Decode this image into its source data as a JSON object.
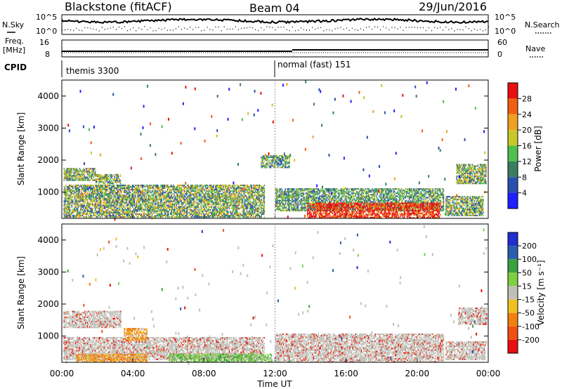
{
  "header": {
    "site": "Blackstone (fitACF)",
    "beam": "Beam 04",
    "date": "29/Jun/2016"
  },
  "noise_panel": {
    "left_label": "N.Sky",
    "right_label": "N.Search",
    "left_ticks": [
      "10^5",
      "10^0"
    ],
    "right_ticks": [
      "10^5",
      "10^0"
    ]
  },
  "freq_panel": {
    "left_label_line1": "Freq.",
    "left_label_line2": "[MHz]",
    "left_ticks": [
      "16",
      "8"
    ],
    "right_label": "Nave",
    "right_ticks": [
      "60",
      "0"
    ]
  },
  "cpid_panel": {
    "label": "CPID",
    "modes": [
      {
        "name": "themis 3300",
        "start_hour": 0
      },
      {
        "name": "normal (fast) 151",
        "start_hour": 12
      }
    ]
  },
  "chart_data": [
    {
      "type": "heatmap",
      "panel": "power",
      "ylabel": "Slant Range [km]",
      "ylim": [
        180,
        4500
      ],
      "yticks": [
        "1000",
        "2000",
        "3000",
        "4000"
      ],
      "colorbar_label": "Power [dB]",
      "colorbar_ticks": [
        "4",
        "8",
        "12",
        "16",
        "20",
        "24",
        "28"
      ],
      "colorbar_colors": [
        "#1f1fff",
        "#2a4fb0",
        "#3a7d60",
        "#4fbf4f",
        "#c8c82a",
        "#f0a020",
        "#f06010",
        "#e81010"
      ],
      "xlim_hours": [
        0,
        24
      ],
      "features": [
        {
          "t0": 0.1,
          "t1": 1.9,
          "r0": 1350,
          "r1": 1750,
          "level": "mid"
        },
        {
          "t0": 1.9,
          "t1": 3.3,
          "r0": 1250,
          "r1": 1550,
          "level": "mid"
        },
        {
          "t0": 0.1,
          "t1": 11.4,
          "r0": 200,
          "r1": 1200,
          "level": "mid"
        },
        {
          "t0": 12.0,
          "t1": 21.5,
          "r0": 400,
          "r1": 1100,
          "level": "low"
        },
        {
          "t0": 13.8,
          "t1": 21.3,
          "r0": 180,
          "r1": 650,
          "level": "high"
        },
        {
          "t0": 21.6,
          "t1": 23.7,
          "r0": 250,
          "r1": 850,
          "level": "mid"
        },
        {
          "t0": 22.2,
          "t1": 23.9,
          "r0": 1250,
          "r1": 1850,
          "level": "mid"
        },
        {
          "t0": 11.2,
          "t1": 12.8,
          "r0": 1750,
          "r1": 2150,
          "level": "low"
        }
      ]
    },
    {
      "type": "heatmap",
      "panel": "velocity",
      "ylabel": "Slant Range [km]",
      "ylim": [
        180,
        4500
      ],
      "yticks": [
        "1000",
        "2000",
        "3000",
        "4000"
      ],
      "xlabel": "Time UT",
      "xticks": [
        "00:00",
        "04:00",
        "08:00",
        "12:00",
        "16:00",
        "20:00",
        "00:00"
      ],
      "colorbar_label": "Velocity [m s⁻¹]",
      "colorbar_ticks": [
        "200",
        "100",
        "50",
        "15",
        "-15",
        "-50",
        "-100",
        "-200"
      ],
      "colorbar_colors": [
        "#1f2fd0",
        "#2a5fb0",
        "#3aa040",
        "#7ed040",
        "#c0c0b8",
        "#f0c020",
        "#f08010",
        "#f05010",
        "#e81010"
      ],
      "xlim_hours": [
        0,
        24
      ],
      "features": [
        {
          "t0": 0.1,
          "t1": 3.3,
          "r0": 1250,
          "r1": 1750,
          "level": "ground"
        },
        {
          "t0": 0.1,
          "t1": 11.4,
          "r0": 250,
          "r1": 950,
          "level": "ground"
        },
        {
          "t0": 3.5,
          "t1": 4.8,
          "r0": 850,
          "r1": 1250,
          "level": "neg"
        },
        {
          "t0": 0.8,
          "t1": 4.8,
          "r0": 180,
          "r1": 420,
          "level": "neg"
        },
        {
          "t0": 6.0,
          "t1": 11.8,
          "r0": 180,
          "r1": 450,
          "level": "pos"
        },
        {
          "t0": 12.0,
          "t1": 21.5,
          "r0": 180,
          "r1": 1050,
          "level": "ground"
        },
        {
          "t0": 21.6,
          "t1": 23.8,
          "r0": 250,
          "r1": 800,
          "level": "ground"
        },
        {
          "t0": 22.3,
          "t1": 23.9,
          "r0": 1350,
          "r1": 1850,
          "level": "ground"
        }
      ]
    }
  ]
}
